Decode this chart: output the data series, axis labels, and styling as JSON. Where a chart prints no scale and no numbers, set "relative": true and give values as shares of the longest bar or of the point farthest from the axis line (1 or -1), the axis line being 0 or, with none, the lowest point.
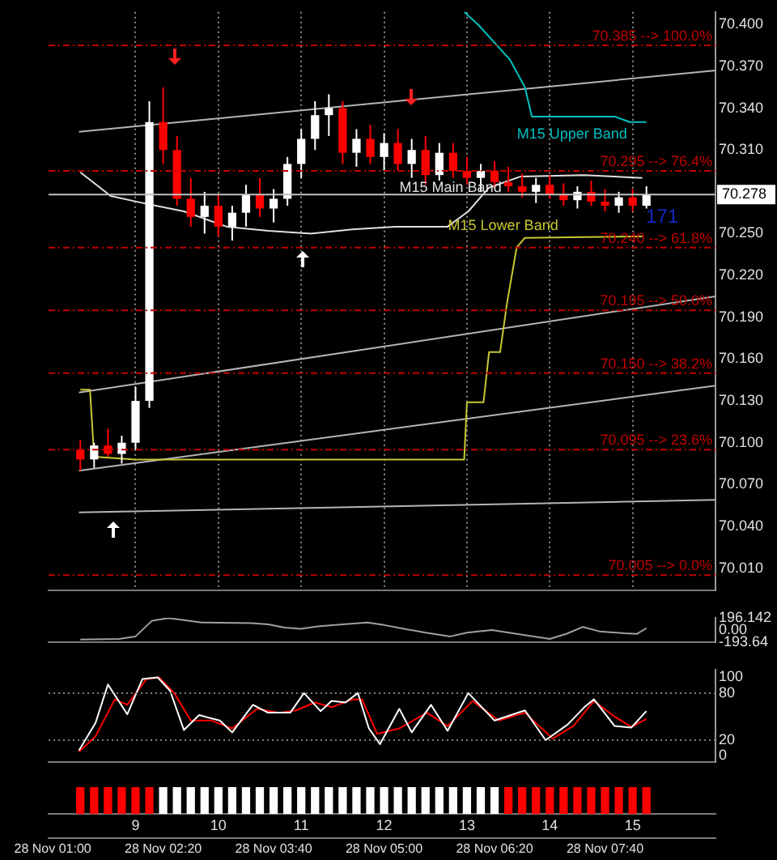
{
  "chart_data": [
    {
      "type": "candlestick",
      "x": [
        "--11-28T01:20",
        "--11-28T01:30",
        "--11-28T01:40",
        "--11-28T01:50",
        "--11-28T02:00",
        "--11-28T02:10",
        "--11-28T02:20",
        "--11-28T02:30",
        "--11-28T02:40",
        "--11-28T02:50",
        "--11-28T03:00",
        "--11-28T03:10",
        "--11-28T03:20",
        "--11-28T03:30",
        "--11-28T03:40",
        "--11-28T03:50",
        "--11-28T04:00",
        "--11-28T04:10",
        "--11-28T04:20",
        "--11-28T04:30",
        "--11-28T04:40",
        "--11-28T04:50",
        "--11-28T05:00",
        "--11-28T05:10",
        "--11-28T05:20",
        "--11-28T05:30",
        "--11-28T05:40",
        "--11-28T05:50",
        "--11-28T06:00",
        "--11-28T06:10",
        "--11-28T06:20",
        "--11-28T06:30",
        "--11-28T06:40",
        "--11-28T06:50",
        "--11-28T07:00",
        "--11-28T07:10",
        "--11-28T07:20",
        "--11-28T07:30",
        "--11-28T07:40",
        "--11-28T07:50",
        "--11-28T08:00",
        "--11-28T08:10"
      ],
      "ohlc": [
        [
          70.095,
          70.102,
          70.08,
          70.088
        ],
        [
          70.088,
          70.1,
          70.082,
          70.098
        ],
        [
          70.098,
          70.11,
          70.09,
          70.092
        ],
        [
          70.092,
          70.105,
          70.085,
          70.1
        ],
        [
          70.1,
          70.14,
          70.095,
          70.13
        ],
        [
          70.13,
          70.345,
          70.125,
          70.33
        ],
        [
          70.33,
          70.355,
          70.3,
          70.31
        ],
        [
          70.31,
          70.32,
          70.27,
          70.275
        ],
        [
          70.275,
          70.29,
          70.255,
          70.262
        ],
        [
          70.262,
          70.28,
          70.25,
          70.27
        ],
        [
          70.27,
          70.278,
          70.248,
          70.255
        ],
        [
          70.255,
          70.27,
          70.245,
          70.265
        ],
        [
          70.265,
          70.285,
          70.255,
          70.278
        ],
        [
          70.278,
          70.29,
          70.262,
          70.268
        ],
        [
          70.268,
          70.282,
          70.258,
          70.275
        ],
        [
          70.275,
          70.305,
          70.27,
          70.3
        ],
        [
          70.3,
          70.325,
          70.29,
          70.318
        ],
        [
          70.318,
          70.345,
          70.31,
          70.335
        ],
        [
          70.335,
          70.35,
          70.32,
          70.34
        ],
        [
          70.34,
          70.345,
          70.3,
          70.308
        ],
        [
          70.308,
          70.325,
          70.298,
          70.318
        ],
        [
          70.318,
          70.328,
          70.3,
          70.305
        ],
        [
          70.305,
          70.322,
          70.295,
          70.315
        ],
        [
          70.315,
          70.325,
          70.295,
          70.3
        ],
        [
          70.3,
          70.318,
          70.29,
          70.31
        ],
        [
          70.31,
          70.32,
          70.285,
          70.292
        ],
        [
          70.292,
          70.315,
          70.288,
          70.308
        ],
        [
          70.308,
          70.315,
          70.29,
          70.295
        ],
        [
          70.295,
          70.305,
          70.285,
          70.29
        ],
        [
          70.29,
          70.3,
          70.28,
          70.295
        ],
        [
          70.295,
          70.302,
          70.282,
          70.287
        ],
        [
          70.287,
          70.298,
          70.28,
          70.284
        ],
        [
          70.284,
          70.293,
          70.276,
          70.28
        ],
        [
          70.28,
          70.29,
          70.272,
          70.285
        ],
        [
          70.285,
          70.292,
          70.275,
          70.278
        ],
        [
          70.278,
          70.286,
          70.27,
          70.274
        ],
        [
          70.274,
          70.284,
          70.268,
          70.28
        ],
        [
          70.28,
          70.288,
          70.27,
          70.273
        ],
        [
          70.273,
          70.282,
          70.266,
          70.27
        ],
        [
          70.27,
          70.28,
          70.265,
          70.276
        ],
        [
          70.276,
          70.282,
          70.266,
          70.27
        ],
        [
          70.27,
          70.284,
          70.268,
          70.278
        ]
      ],
      "colors": [
        "#ff0000",
        "#ffffff",
        "#ff0000",
        "#ffffff",
        "#ffffff",
        "#ffffff",
        "#ff0000",
        "#ff0000",
        "#ff0000",
        "#ffffff",
        "#ff0000",
        "#ffffff",
        "#ffffff",
        "#ff0000",
        "#ffffff",
        "#ffffff",
        "#ffffff",
        "#ffffff",
        "#ffffff",
        "#ff0000",
        "#ffffff",
        "#ff0000",
        "#ffffff",
        "#ff0000",
        "#ffffff",
        "#ff0000",
        "#ffffff",
        "#ff0000",
        "#ff0000",
        "#ffffff",
        "#ff0000",
        "#ff0000",
        "#ff0000",
        "#ffffff",
        "#ff0000",
        "#ff0000",
        "#ffffff",
        "#ff0000",
        "#ff0000",
        "#ffffff",
        "#ff0000",
        "#ffffff"
      ],
      "series": [
        {
          "type": "line",
          "name": "M15 Upper Band",
          "color": "#00c0c0",
          "x": [
            "--11-28T05:58",
            "--11-28T06:08",
            "--11-28T06:31",
            "--11-28T06:42",
            "--11-28T06:47",
            "--11-28T07:47",
            "--11-28T07:58",
            "--11-28T08:10"
          ],
          "values": [
            70.409,
            70.4,
            70.375,
            70.355,
            70.334,
            70.334,
            70.33,
            70.33
          ]
        },
        {
          "type": "line",
          "name": "M15 Main Band",
          "color": "#e0e0e0",
          "x": [
            "--11-28T01:20",
            "--11-28T01:42",
            "--11-28T02:05",
            "--11-28T02:35",
            "--11-28T03:06",
            "--11-28T03:36",
            "--11-28T04:07",
            "--11-28T04:37",
            "--11-28T05:08",
            "--11-28T05:46",
            "--11-28T06:01",
            "--11-28T06:16",
            "--11-28T06:39",
            "--11-28T07:25",
            "--11-28T08:07"
          ],
          "values": [
            70.294,
            70.277,
            70.272,
            70.266,
            70.255,
            70.252,
            70.25,
            70.253,
            70.255,
            70.255,
            70.266,
            70.283,
            70.291,
            70.292,
            70.29
          ]
        },
        {
          "type": "line",
          "name": "M15 Lower Band",
          "color": "#c8c832",
          "x": [
            "--11-28T01:20",
            "--11-28T01:27",
            "--11-28T01:30",
            "--11-28T02:00",
            "--11-28T04:00",
            "--11-28T05:58",
            "--11-28T06:00",
            "--11-28T06:12",
            "--11-28T06:16",
            "--11-28T06:24",
            "--11-28T06:29",
            "--11-28T06:36",
            "--11-28T06:42",
            "--11-28T08:07"
          ],
          "values": [
            70.138,
            70.138,
            70.09,
            70.088,
            70.088,
            70.088,
            70.129,
            70.129,
            70.165,
            70.165,
            70.2,
            70.24,
            70.247,
            70.248
          ]
        },
        {
          "type": "line",
          "color": "#b4b4b4",
          "x": [
            "--11-28T01:19",
            "--11-28T09:00"
          ],
          "values": [
            70.323,
            70.367
          ]
        },
        {
          "type": "line",
          "color": "#b4b4b4",
          "x": [
            "--11-28T01:19",
            "--11-28T09:00"
          ],
          "values": [
            70.136,
            70.205
          ]
        },
        {
          "type": "line",
          "color": "#b4b4b4",
          "x": [
            "--11-28T01:19",
            "--11-28T09:00"
          ],
          "values": [
            70.08,
            70.141
          ]
        },
        {
          "type": "line",
          "color": "#b4b4b4",
          "x": [
            "--11-28T01:19",
            "--11-28T09:00"
          ],
          "values": [
            70.05,
            70.059
          ]
        }
      ],
      "ref_lines": [
        {
          "axis": "y",
          "value": 70.385,
          "label": "70.385 --> 100.0%",
          "color": "#c00000",
          "line_style": "dashed"
        },
        {
          "axis": "y",
          "value": 70.295,
          "label": "70.295 --> 76.4%",
          "color": "#c00000",
          "line_style": "dashed"
        },
        {
          "axis": "y",
          "value": 70.24,
          "label": "70.240 --> 61.8%",
          "color": "#c00000",
          "line_style": "dashed"
        },
        {
          "axis": "y",
          "value": 70.195,
          "label": "70.195 --> 50.0%",
          "color": "#c00000",
          "line_style": "dashed"
        },
        {
          "axis": "y",
          "value": 70.15,
          "label": "70.150 --> 38.2%",
          "color": "#c00000",
          "line_style": "dashed"
        },
        {
          "axis": "y",
          "value": 70.095,
          "label": "70.095 --> 23.6%",
          "color": "#c00000",
          "line_style": "dashed"
        },
        {
          "axis": "y",
          "value": 70.005,
          "label": "70.005 --> 0.0%",
          "color": "#c00000",
          "line_style": "dashed"
        },
        {
          "axis": "y",
          "value": 70.278,
          "label": "70.278",
          "color": "#c0c0c0",
          "line_style": "solid"
        }
      ],
      "annotations": [
        "171"
      ],
      "xlim": [
        "--11-28T00:57",
        "--11-28T09:00"
      ],
      "xticks": [
        {
          "value": "--11-28T02:00",
          "label": null
        },
        {
          "value": "--11-28T03:00",
          "label": null
        },
        {
          "value": "--11-28T04:00",
          "label": null
        },
        {
          "value": "--11-28T05:00",
          "label": null
        },
        {
          "value": "--11-28T06:00",
          "label": null
        },
        {
          "value": "--11-28T07:00",
          "label": null
        },
        {
          "value": "--11-28T08:00",
          "label": null
        }
      ],
      "ylim": [
        69.994,
        70.409
      ],
      "yticks": [
        {
          "value": 70.01,
          "label": "70.010"
        },
        {
          "value": 70.04,
          "label": "70.040"
        },
        {
          "value": 70.07,
          "label": "70.070"
        },
        {
          "value": 70.1,
          "label": "70.100"
        },
        {
          "value": 70.13,
          "label": "70.130"
        },
        {
          "value": 70.16,
          "label": "70.160"
        },
        {
          "value": 70.19,
          "label": "70.190"
        },
        {
          "value": 70.22,
          "label": "70.220"
        },
        {
          "value": 70.25,
          "label": "70.250"
        },
        {
          "value": 70.31,
          "label": "70.310"
        },
        {
          "value": 70.34,
          "label": "70.340"
        },
        {
          "value": 70.37,
          "label": "70.370"
        },
        {
          "value": 70.4,
          "label": "70.400"
        }
      ],
      "tick_labels": "y",
      "grid": "x",
      "legend": false
    },
    {
      "type": "line",
      "color": "#a0a0a0",
      "x": [
        "--11-28T01:20",
        "--11-28T01:48",
        "--11-28T02:00",
        "--11-28T02:12",
        "--11-28T02:24",
        "--11-28T02:48",
        "--11-28T03:24",
        "--11-28T03:36",
        "--11-28T03:48",
        "--11-28T04:00",
        "--11-28T04:12",
        "--11-28T04:30",
        "--11-28T04:48",
        "--11-28T05:00",
        "--11-28T05:12",
        "--11-28T05:30",
        "--11-28T05:48",
        "--11-28T06:00",
        "--11-28T06:18",
        "--11-28T06:36",
        "--11-28T07:00",
        "--11-28T07:12",
        "--11-28T07:24",
        "--11-28T07:36",
        "--11-28T07:54",
        "--11-28T08:03",
        "--11-28T08:10"
      ],
      "values": [
        -150,
        -140,
        -100,
        150,
        190,
        120,
        110,
        90,
        40,
        20,
        60,
        90,
        120,
        80,
        30,
        -40,
        -100,
        -40,
        0,
        -60,
        -140,
        -60,
        50,
        -20,
        -50,
        -60,
        30
      ],
      "xlim": [
        "--11-28T00:57",
        "--11-28T09:00"
      ],
      "ylim": [
        -193.64,
        196.142
      ],
      "yticks": [
        196.142,
        {
          "value": 0,
          "label": "0.00"
        },
        -193.64
      ],
      "tick_labels": "y",
      "legend": false
    },
    {
      "type": "line",
      "series": [
        {
          "color": "#ffffff",
          "x": [
            "--11-28T01:19",
            "--11-28T01:31",
            "--11-28T01:40",
            "--11-28T01:54",
            "--11-28T02:05",
            "--11-28T02:16",
            "--11-28T02:25",
            "--11-28T02:35",
            "--11-28T02:46",
            "--11-28T03:01",
            "--11-28T03:10",
            "--11-28T03:25",
            "--11-28T03:36",
            "--11-28T03:52",
            "--11-28T04:02",
            "--11-28T04:14",
            "--11-28T04:22",
            "--11-28T04:32",
            "--11-28T04:41",
            "--11-28T04:49",
            "--11-28T04:57",
            "--11-28T05:11",
            "--11-28T05:20",
            "--11-28T05:34",
            "--11-28T05:46",
            "--11-28T06:01",
            "--11-28T06:20",
            "--11-28T06:42",
            "--11-28T06:57",
            "--11-28T07:13",
            "--11-28T07:25",
            "--11-28T07:32",
            "--11-28T07:47",
            "--11-28T07:59",
            "--11-28T08:10"
          ],
          "values": [
            7,
            42,
            91,
            53,
            98,
            100,
            83,
            33,
            52,
            45,
            30,
            65,
            55,
            55,
            80,
            57,
            70,
            68,
            80,
            35,
            15,
            60,
            30,
            65,
            32,
            80,
            45,
            58,
            20,
            40,
            62,
            72,
            38,
            36,
            57
          ]
        },
        {
          "color": "#ff0000",
          "x": [
            "--11-28T01:19",
            "--11-28T01:31",
            "--11-28T01:45",
            "--11-28T01:54",
            "--11-28T02:08",
            "--11-28T02:17",
            "--11-28T02:28",
            "--11-28T02:40",
            "--11-28T02:55",
            "--11-28T03:10",
            "--11-28T03:28",
            "--11-28T03:44",
            "--11-28T03:56",
            "--11-28T04:10",
            "--11-28T04:22",
            "--11-28T04:37",
            "--11-28T04:44",
            "--11-28T04:55",
            "--11-28T05:11",
            "--11-28T05:31",
            "--11-28T05:46",
            "--11-28T06:04",
            "--11-28T06:23",
            "--11-28T06:42",
            "--11-28T07:02",
            "--11-28T07:17",
            "--11-28T07:32",
            "--11-28T07:47",
            "--11-28T07:59",
            "--11-28T08:10"
          ],
          "values": [
            5,
            25,
            72,
            65,
            98,
            100,
            80,
            45,
            45,
            35,
            60,
            55,
            58,
            68,
            62,
            72,
            72,
            28,
            35,
            55,
            38,
            70,
            45,
            55,
            22,
            38,
            70,
            50,
            37,
            47
          ]
        }
      ],
      "ref_lines": [
        {
          "axis": "y",
          "value": 20,
          "color": "#808080",
          "line_style": "dotted"
        },
        {
          "axis": "y",
          "value": 80,
          "color": "#808080",
          "line_style": "dotted"
        }
      ],
      "xlim": [
        "--11-28T00:57",
        "--11-28T09:00"
      ],
      "ylim": [
        -8,
        110
      ],
      "yticks": [
        0,
        20,
        80,
        100
      ],
      "tick_labels": "y",
      "legend": false
    },
    {
      "type": "bar",
      "relative": true,
      "x": [
        "--11-28T01:20",
        "--11-28T01:30",
        "--11-28T01:40",
        "--11-28T01:50",
        "--11-28T02:00",
        "--11-28T02:10",
        "--11-28T02:20",
        "--11-28T02:30",
        "--11-28T02:40",
        "--11-28T02:50",
        "--11-28T03:00",
        "--11-28T03:10",
        "--11-28T03:20",
        "--11-28T03:30",
        "--11-28T03:40",
        "--11-28T03:50",
        "--11-28T04:00",
        "--11-28T04:10",
        "--11-28T04:20",
        "--11-28T04:30",
        "--11-28T04:40",
        "--11-28T04:50",
        "--11-28T05:00",
        "--11-28T05:10",
        "--11-28T05:20",
        "--11-28T05:30",
        "--11-28T05:40",
        "--11-28T05:50",
        "--11-28T06:00",
        "--11-28T06:10",
        "--11-28T06:20",
        "--11-28T06:30",
        "--11-28T06:40",
        "--11-28T06:50",
        "--11-28T07:00",
        "--11-28T07:10",
        "--11-28T07:20",
        "--11-28T07:30",
        "--11-28T07:40",
        "--11-28T07:50",
        "--11-28T08:00",
        "--11-28T08:10"
      ],
      "values": [
        1,
        1,
        1,
        1,
        1,
        1,
        1,
        1,
        1,
        1,
        1,
        1,
        1,
        1,
        1,
        1,
        1,
        1,
        1,
        1,
        1,
        1,
        1,
        1,
        1,
        1,
        1,
        1,
        1,
        1,
        1,
        1,
        1,
        1,
        1,
        1,
        1,
        1,
        1,
        1,
        1,
        1
      ],
      "colors": [
        "#ff0000",
        "#ff0000",
        "#ff0000",
        "#ff0000",
        "#ff0000",
        "#ff0000",
        "#ffffff",
        "#ffffff",
        "#ffffff",
        "#ffffff",
        "#ffffff",
        "#ffffff",
        "#ffffff",
        "#ffffff",
        "#ffffff",
        "#ffffff",
        "#ffffff",
        "#ffffff",
        "#ffffff",
        "#ffffff",
        "#ffffff",
        "#ffffff",
        "#ffffff",
        "#ffffff",
        "#ffffff",
        "#ffffff",
        "#ffffff",
        "#ffffff",
        "#ffffff",
        "#ffffff",
        "#ffffff",
        "#ff0000",
        "#ff0000",
        "#ff0000",
        "#ff0000",
        "#ff0000",
        "#ff0000",
        "#ff0000",
        "#ff0000",
        "#ff0000",
        "#ff0000",
        "#ff0000"
      ],
      "xlim": [
        "--11-28T00:57",
        "--11-28T09:00"
      ],
      "xticks": [
        {
          "value": "--11-28T01:00",
          "label": "28 Nov 01:00"
        },
        {
          "value": "--11-28T02:20",
          "label": "28 Nov 02:20"
        },
        {
          "value": "--11-28T03:40",
          "label": "28 Nov 03:40"
        },
        {
          "value": "--11-28T05:00",
          "label": "28 Nov 05:00"
        },
        {
          "value": "--11-28T06:20",
          "label": "28 Nov 06:20"
        },
        {
          "value": "--11-28T07:40",
          "label": "28 Nov 07:40"
        }
      ],
      "x2lim": [
        7.95,
        16.0
      ],
      "x2ticks": [
        9,
        10,
        11,
        12,
        13,
        14,
        15
      ],
      "legend": false
    }
  ]
}
